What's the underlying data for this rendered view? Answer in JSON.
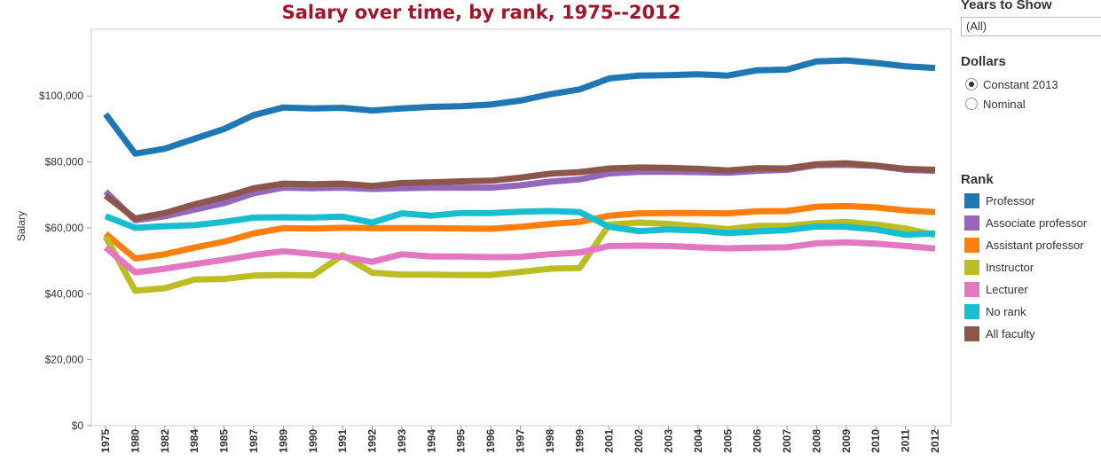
{
  "controls": {
    "years_heading": "Years to Show",
    "years_value": "(All)",
    "dollars_heading": "Dollars",
    "dollar_options": [
      {
        "label": "Constant 2013",
        "selected": true
      },
      {
        "label": "Nominal",
        "selected": false
      }
    ],
    "rank_heading": "Rank"
  },
  "chart_data": {
    "type": "line",
    "title": "Salary over time, by rank, 1975--2012",
    "ylabel": "Salary",
    "xlabel": "",
    "ylim": [
      0,
      117000
    ],
    "y_ticks": [
      0,
      20000,
      40000,
      60000,
      80000,
      100000
    ],
    "y_tick_labels": [
      "$0",
      "$20,000",
      "$40,000",
      "$60,000",
      "$80,000",
      "$100,000"
    ],
    "legend_position": "right",
    "grid": false,
    "categories": [
      "1975",
      "1980",
      "1982",
      "1984",
      "1985",
      "1987",
      "1989",
      "1990",
      "1991",
      "1992",
      "1993",
      "1994",
      "1995",
      "1996",
      "1997",
      "1998",
      "1999",
      "2001",
      "2002",
      "2003",
      "2004",
      "2005",
      "2006",
      "2007",
      "2008",
      "2009",
      "2010",
      "2011",
      "2012"
    ],
    "series": [
      {
        "name": "Professor",
        "color": "#1f77b4",
        "values": [
          94500,
          82500,
          84000,
          87000,
          90000,
          94200,
          96500,
          96200,
          96400,
          95600,
          96200,
          96700,
          96900,
          97400,
          98600,
          100500,
          102000,
          105300,
          106200,
          106300,
          106600,
          106200,
          107800,
          108000,
          110500,
          110800,
          110000,
          109000,
          108500
        ]
      },
      {
        "name": "Associate professor",
        "color": "#9467bd",
        "values": [
          71000,
          62300,
          63500,
          65500,
          67500,
          70500,
          72200,
          72000,
          72200,
          71800,
          72000,
          72200,
          72200,
          72200,
          72900,
          74000,
          74700,
          76500,
          77000,
          77000,
          76900,
          76700,
          77300,
          77600,
          79000,
          79100,
          78800,
          77600,
          77300
        ]
      },
      {
        "name": "Assistant professor",
        "color": "#ff7f0e",
        "values": [
          58200,
          50700,
          52000,
          54000,
          55800,
          58300,
          59900,
          59800,
          60000,
          59900,
          59900,
          59900,
          59800,
          59700,
          60300,
          61200,
          61800,
          63700,
          64400,
          64500,
          64500,
          64400,
          65000,
          65100,
          66400,
          66600,
          66200,
          65300,
          64800
        ]
      },
      {
        "name": "Instructor",
        "color": "#bcbd22",
        "values": [
          57300,
          40900,
          41700,
          44300,
          44500,
          45500,
          45700,
          45600,
          51700,
          46400,
          45800,
          45800,
          45700,
          45700,
          46600,
          47600,
          47800,
          61000,
          61600,
          61200,
          60400,
          59600,
          60600,
          60600,
          61400,
          61800,
          61000,
          59800,
          57800
        ]
      },
      {
        "name": "Lecturer",
        "color": "#e377c2",
        "values": [
          54000,
          46500,
          47600,
          49000,
          50300,
          51800,
          52900,
          52100,
          51200,
          49700,
          52000,
          51300,
          51300,
          51100,
          51200,
          52000,
          52500,
          54500,
          54600,
          54500,
          54100,
          53800,
          54000,
          54100,
          55300,
          55600,
          55200,
          54500,
          53700
        ]
      },
      {
        "name": "No rank",
        "color": "#17becf",
        "values": [
          63500,
          60000,
          60500,
          60800,
          61800,
          63100,
          63200,
          63100,
          63400,
          61600,
          64400,
          63700,
          64500,
          64500,
          64900,
          65100,
          64800,
          60300,
          59000,
          59500,
          59200,
          58400,
          58900,
          59300,
          60400,
          60300,
          59500,
          57900,
          58300
        ]
      },
      {
        "name": "All faculty",
        "color": "#8c564b",
        "values": [
          69800,
          62800,
          64500,
          67100,
          69300,
          72000,
          73400,
          73200,
          73400,
          72700,
          73600,
          73800,
          74100,
          74300,
          75200,
          76400,
          76900,
          78000,
          78300,
          78200,
          77900,
          77400,
          78100,
          78000,
          79300,
          79600,
          78900,
          77900,
          77600
        ]
      }
    ]
  }
}
